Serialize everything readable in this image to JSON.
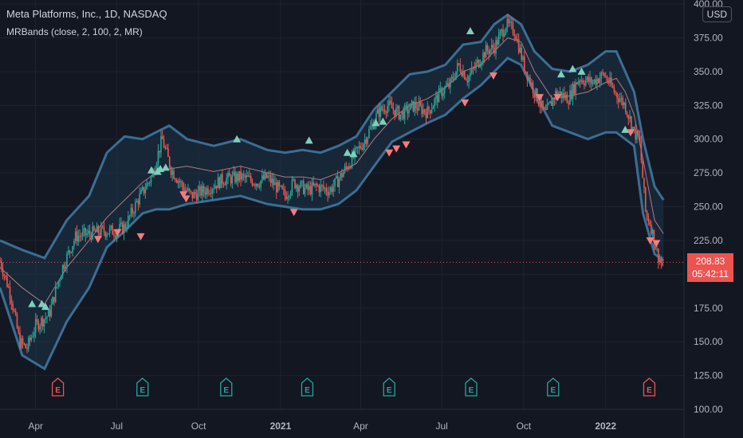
{
  "header": {
    "title": "Meta Platforms, Inc., 1D, NASDAQ",
    "indicator": "MRBands (close, 2, 100, 2, MR)",
    "currency": "USD"
  },
  "last_price": {
    "value": "208.83",
    "countdown": "05:42:11"
  },
  "colors": {
    "background": "#131722",
    "grid": "#1f2330",
    "up": "#26a69a",
    "down": "#ef5350",
    "band": "#3b6e94",
    "band_fill": "#1c3448",
    "mid": "#b07a85",
    "signal_up": "#7fcfbf",
    "signal_down": "#f47c7c",
    "earn_bad": "#ef5350",
    "earn_good": "#26a69a"
  },
  "chart_data": {
    "type": "candlestick",
    "title": "Meta Platforms, Inc., 1D, NASDAQ",
    "y_axis": {
      "ticks": [
        100,
        125,
        150,
        175,
        200,
        225,
        250,
        275,
        300,
        325,
        350,
        375,
        400
      ],
      "range": [
        100,
        403
      ]
    },
    "x_axis": {
      "labels": [
        {
          "label": "Apr",
          "day": 40,
          "bold": false
        },
        {
          "label": "Jul",
          "day": 131,
          "bold": false
        },
        {
          "label": "Oct",
          "day": 223,
          "bold": false
        },
        {
          "label": "2021",
          "day": 315,
          "bold": true
        },
        {
          "label": "Apr",
          "day": 405,
          "bold": false
        },
        {
          "label": "Jul",
          "day": 496,
          "bold": false
        },
        {
          "label": "Oct",
          "day": 588,
          "bold": false
        },
        {
          "label": "2022",
          "day": 680,
          "bold": true
        }
      ],
      "range_days": [
        0,
        768
      ]
    },
    "price_path": [
      [
        0,
        210
      ],
      [
        12,
        185
      ],
      [
        22,
        150
      ],
      [
        30,
        145
      ],
      [
        40,
        162
      ],
      [
        55,
        170
      ],
      [
        70,
        205
      ],
      [
        85,
        228
      ],
      [
        100,
        230
      ],
      [
        115,
        232
      ],
      [
        130,
        232
      ],
      [
        140,
        235
      ],
      [
        155,
        255
      ],
      [
        170,
        272
      ],
      [
        182,
        300
      ],
      [
        192,
        278
      ],
      [
        205,
        265
      ],
      [
        215,
        258
      ],
      [
        230,
        262
      ],
      [
        250,
        270
      ],
      [
        270,
        272
      ],
      [
        290,
        268
      ],
      [
        300,
        272
      ],
      [
        310,
        265
      ],
      [
        320,
        258
      ],
      [
        330,
        268
      ],
      [
        345,
        262
      ],
      [
        355,
        265
      ],
      [
        370,
        262
      ],
      [
        380,
        270
      ],
      [
        395,
        285
      ],
      [
        410,
        300
      ],
      [
        425,
        320
      ],
      [
        435,
        325
      ],
      [
        450,
        318
      ],
      [
        465,
        325
      ],
      [
        480,
        320
      ],
      [
        495,
        335
      ],
      [
        505,
        340
      ],
      [
        515,
        355
      ],
      [
        525,
        345
      ],
      [
        535,
        355
      ],
      [
        545,
        365
      ],
      [
        555,
        368
      ],
      [
        568,
        385
      ],
      [
        578,
        380
      ],
      [
        588,
        355
      ],
      [
        600,
        335
      ],
      [
        612,
        318
      ],
      [
        625,
        335
      ],
      [
        638,
        330
      ],
      [
        650,
        345
      ],
      [
        665,
        342
      ],
      [
        678,
        348
      ],
      [
        690,
        335
      ],
      [
        702,
        325
      ],
      [
        712,
        305
      ],
      [
        718,
        300
      ],
      [
        725,
        245
      ],
      [
        730,
        238
      ],
      [
        738,
        215
      ],
      [
        745,
        205
      ]
    ],
    "bands": {
      "upper": [
        [
          0,
          225
        ],
        [
          25,
          218
        ],
        [
          50,
          212
        ],
        [
          75,
          240
        ],
        [
          100,
          258
        ],
        [
          120,
          290
        ],
        [
          140,
          302
        ],
        [
          160,
          300
        ],
        [
          175,
          305
        ],
        [
          190,
          310
        ],
        [
          210,
          300
        ],
        [
          240,
          295
        ],
        [
          270,
          300
        ],
        [
          300,
          292
        ],
        [
          320,
          290
        ],
        [
          340,
          292
        ],
        [
          360,
          290
        ],
        [
          380,
          295
        ],
        [
          400,
          302
        ],
        [
          420,
          322
        ],
        [
          440,
          335
        ],
        [
          460,
          348
        ],
        [
          480,
          350
        ],
        [
          500,
          355
        ],
        [
          520,
          370
        ],
        [
          540,
          372
        ],
        [
          555,
          385
        ],
        [
          570,
          392
        ],
        [
          585,
          385
        ],
        [
          600,
          365
        ],
        [
          620,
          352
        ],
        [
          640,
          350
        ],
        [
          660,
          355
        ],
        [
          680,
          365
        ],
        [
          692,
          365
        ],
        [
          702,
          350
        ],
        [
          712,
          335
        ],
        [
          722,
          300
        ],
        [
          735,
          265
        ],
        [
          745,
          255
        ]
      ],
      "mid": [
        [
          0,
          205
        ],
        [
          25,
          190
        ],
        [
          50,
          178
        ],
        [
          75,
          205
        ],
        [
          100,
          225
        ],
        [
          120,
          242
        ],
        [
          140,
          255
        ],
        [
          160,
          268
        ],
        [
          175,
          275
        ],
        [
          190,
          278
        ],
        [
          210,
          280
        ],
        [
          240,
          276
        ],
        [
          270,
          280
        ],
        [
          300,
          275
        ],
        [
          320,
          272
        ],
        [
          340,
          272
        ],
        [
          360,
          270
        ],
        [
          380,
          275
        ],
        [
          400,
          282
        ],
        [
          420,
          300
        ],
        [
          440,
          315
        ],
        [
          460,
          325
        ],
        [
          480,
          330
        ],
        [
          500,
          338
        ],
        [
          520,
          350
        ],
        [
          540,
          355
        ],
        [
          555,
          365
        ],
        [
          570,
          375
        ],
        [
          585,
          372
        ],
        [
          600,
          350
        ],
        [
          620,
          330
        ],
        [
          640,
          332
        ],
        [
          660,
          335
        ],
        [
          680,
          342
        ],
        [
          692,
          345
        ],
        [
          702,
          335
        ],
        [
          712,
          318
        ],
        [
          722,
          285
        ],
        [
          735,
          240
        ],
        [
          745,
          230
        ]
      ],
      "lower": [
        [
          0,
          190
        ],
        [
          25,
          140
        ],
        [
          50,
          130
        ],
        [
          75,
          165
        ],
        [
          100,
          190
        ],
        [
          120,
          220
        ],
        [
          140,
          232
        ],
        [
          160,
          245
        ],
        [
          175,
          248
        ],
        [
          190,
          248
        ],
        [
          210,
          252
        ],
        [
          240,
          255
        ],
        [
          270,
          258
        ],
        [
          300,
          252
        ],
        [
          320,
          250
        ],
        [
          340,
          248
        ],
        [
          360,
          248
        ],
        [
          380,
          252
        ],
        [
          400,
          262
        ],
        [
          420,
          280
        ],
        [
          440,
          298
        ],
        [
          460,
          305
        ],
        [
          480,
          312
        ],
        [
          500,
          318
        ],
        [
          520,
          330
        ],
        [
          540,
          340
        ],
        [
          555,
          350
        ],
        [
          570,
          360
        ],
        [
          585,
          355
        ],
        [
          600,
          335
        ],
        [
          620,
          310
        ],
        [
          640,
          305
        ],
        [
          660,
          300
        ],
        [
          680,
          305
        ],
        [
          692,
          305
        ],
        [
          702,
          300
        ],
        [
          712,
          295
        ],
        [
          722,
          245
        ],
        [
          735,
          215
        ],
        [
          745,
          210
        ]
      ]
    },
    "signals": {
      "buy": [
        [
          36,
          178
        ],
        [
          47,
          178
        ],
        [
          51,
          176
        ],
        [
          170,
          277
        ],
        [
          177,
          276
        ],
        [
          180,
          278
        ],
        [
          186,
          279
        ],
        [
          266,
          300
        ],
        [
          347,
          299
        ],
        [
          390,
          290
        ],
        [
          397,
          289
        ],
        [
          422,
          312
        ],
        [
          430,
          313
        ],
        [
          528,
          380
        ],
        [
          630,
          348
        ],
        [
          643,
          352
        ],
        [
          653,
          350
        ],
        [
          702,
          307
        ]
      ],
      "sell": [
        [
          110,
          226
        ],
        [
          132,
          231
        ],
        [
          158,
          228
        ],
        [
          206,
          259
        ],
        [
          209,
          256
        ],
        [
          330,
          246
        ],
        [
          437,
          290
        ],
        [
          445,
          293
        ],
        [
          456,
          296
        ],
        [
          522,
          327
        ],
        [
          554,
          347
        ],
        [
          606,
          331
        ],
        [
          626,
          331
        ],
        [
          708,
          305
        ],
        [
          730,
          225
        ],
        [
          737,
          223
        ]
      ]
    },
    "earnings": [
      {
        "day": 65,
        "kind": "bad"
      },
      {
        "day": 160,
        "kind": "good"
      },
      {
        "day": 254,
        "kind": "good"
      },
      {
        "day": 345,
        "kind": "good"
      },
      {
        "day": 437,
        "kind": "good"
      },
      {
        "day": 529,
        "kind": "good"
      },
      {
        "day": 621,
        "kind": "good"
      },
      {
        "day": 729,
        "kind": "bad"
      }
    ],
    "last_price": 208.83
  }
}
